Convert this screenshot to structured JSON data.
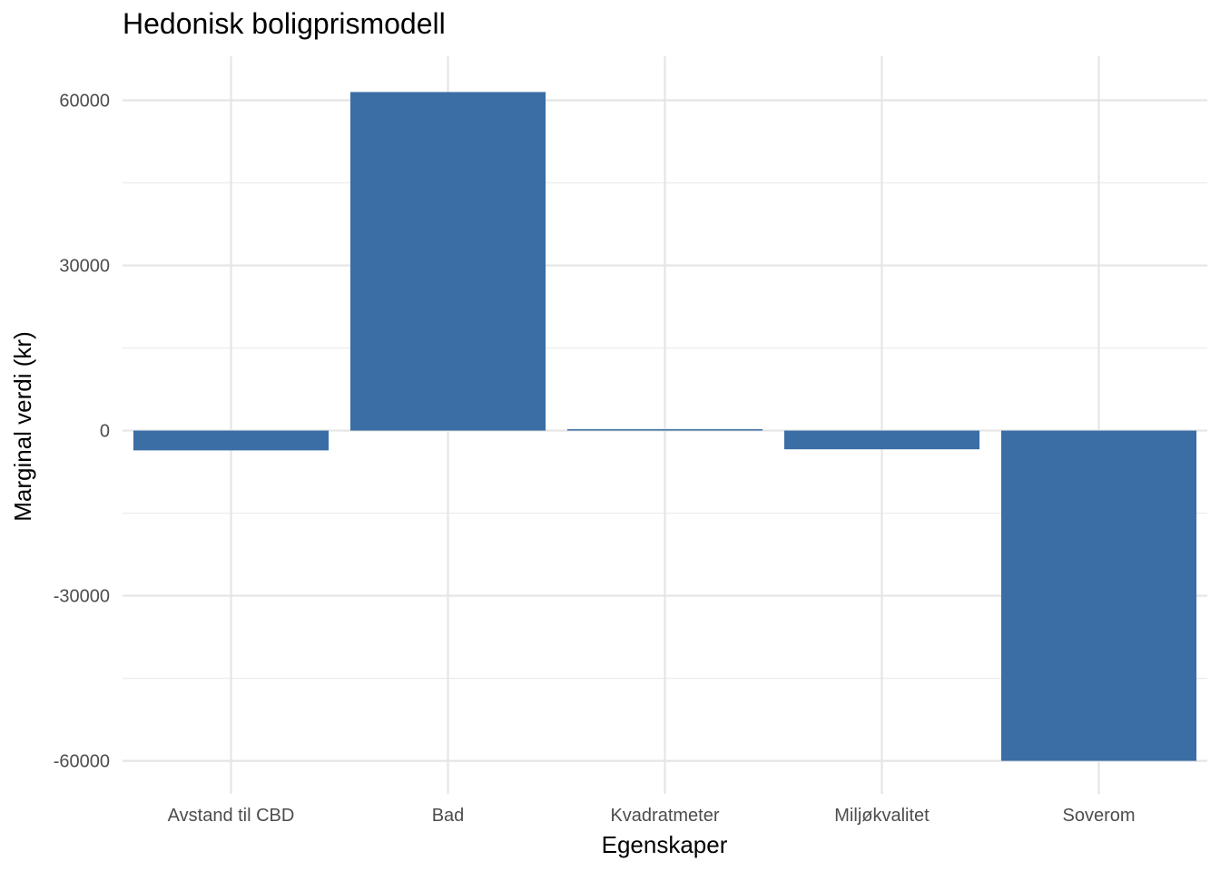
{
  "chart_data": {
    "type": "bar",
    "title": "Hedonisk boligprismodell",
    "xlabel": "Egenskaper",
    "ylabel": "Marginal verdi (kr)",
    "categories": [
      "Avstand til CBD",
      "Bad",
      "Kvadratmeter",
      "Miljøkvalitet",
      "Soverom"
    ],
    "values": [
      -3600,
      61500,
      250,
      -3400,
      -60000
    ],
    "ylim": [
      -66000,
      68000
    ],
    "yticks": [
      -60000,
      -30000,
      0,
      30000,
      60000
    ],
    "ytick_labels": [
      "-60000",
      "-30000",
      "0",
      "30000",
      "60000"
    ],
    "bar_color": "#3a6ea5",
    "grid": true
  }
}
